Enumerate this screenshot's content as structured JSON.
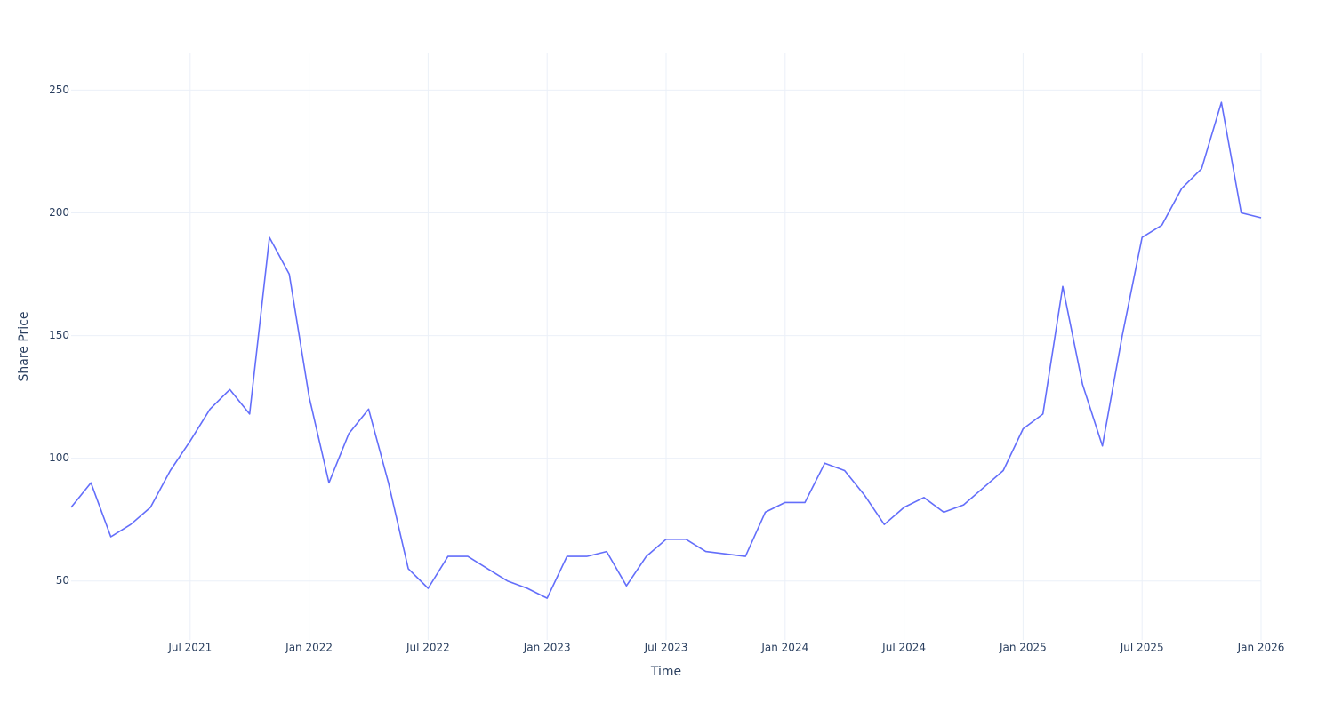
{
  "chart_data": {
    "type": "line",
    "x_label": "Time",
    "y_label": "Share Price",
    "x": [
      "2021-01",
      "2021-02",
      "2021-03",
      "2021-04",
      "2021-05",
      "2021-06",
      "2021-07",
      "2021-08",
      "2021-09",
      "2021-10",
      "2021-11",
      "2021-12",
      "2022-01",
      "2022-02",
      "2022-03",
      "2022-04",
      "2022-05",
      "2022-06",
      "2022-07",
      "2022-08",
      "2022-09",
      "2022-10",
      "2022-11",
      "2022-12",
      "2023-01",
      "2023-02",
      "2023-03",
      "2023-04",
      "2023-05",
      "2023-06",
      "2023-07",
      "2023-08",
      "2023-09",
      "2023-10",
      "2023-11",
      "2023-12",
      "2024-01",
      "2024-02",
      "2024-03",
      "2024-04",
      "2024-05",
      "2024-06",
      "2024-07",
      "2024-08",
      "2024-09",
      "2024-10",
      "2024-11",
      "2024-12",
      "2025-01",
      "2025-02",
      "2025-03",
      "2025-04",
      "2025-05",
      "2025-06",
      "2025-07",
      "2025-08",
      "2025-09",
      "2025-10",
      "2025-11",
      "2025-12",
      "2026-01"
    ],
    "series": [
      {
        "name": "Share Price",
        "color": "#636efa",
        "values": [
          80,
          90,
          68,
          73,
          80,
          95,
          107,
          120,
          128,
          118,
          190,
          175,
          125,
          90,
          110,
          120,
          90,
          55,
          47,
          60,
          60,
          55,
          50,
          47,
          43,
          60,
          60,
          62,
          48,
          60,
          67,
          67,
          62,
          61,
          60,
          78,
          82,
          82,
          98,
          95,
          85,
          73,
          80,
          84,
          78,
          81,
          88,
          95,
          112,
          118,
          170,
          130,
          105,
          150,
          190,
          195,
          210,
          218,
          245,
          200,
          198
        ]
      }
    ],
    "xlim": [
      "2021-01",
      "2026-01"
    ],
    "ylim": [
      26,
      265
    ],
    "xticks": [
      {
        "value": "2021-07",
        "label": "Jul 2021"
      },
      {
        "value": "2022-01",
        "label": "Jan 2022"
      },
      {
        "value": "2022-07",
        "label": "Jul 2022"
      },
      {
        "value": "2023-01",
        "label": "Jan 2023"
      },
      {
        "value": "2023-07",
        "label": "Jul 2023"
      },
      {
        "value": "2024-01",
        "label": "Jan 2024"
      },
      {
        "value": "2024-07",
        "label": "Jul 2024"
      },
      {
        "value": "2025-01",
        "label": "Jan 2025"
      },
      {
        "value": "2025-07",
        "label": "Jul 2025"
      },
      {
        "value": "2026-01",
        "label": "Jan 2026"
      }
    ],
    "yticks": [
      50,
      100,
      150,
      200,
      250
    ],
    "grid": true
  }
}
